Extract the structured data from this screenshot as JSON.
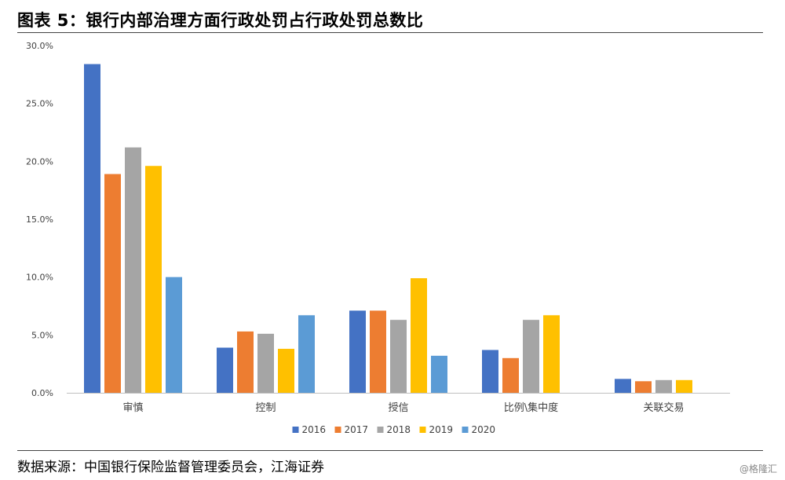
{
  "header": {
    "title": "图表 5：银行内部治理方面行政处罚占行政处罚总数比"
  },
  "footer": {
    "source": "数据来源：中国银行保险监督管理委员会，江海证券",
    "watermark": "@格隆汇"
  },
  "chart_data": {
    "type": "bar",
    "categories": [
      "审慎",
      "控制",
      "授信",
      "比例\\集中度",
      "关联交易"
    ],
    "series": [
      {
        "name": "2016",
        "color": "#4472C4",
        "values": [
          28.4,
          3.9,
          7.1,
          3.7,
          1.2
        ]
      },
      {
        "name": "2017",
        "color": "#ED7D31",
        "values": [
          18.9,
          5.3,
          7.1,
          3.0,
          1.0
        ]
      },
      {
        "name": "2018",
        "color": "#A5A5A5",
        "values": [
          21.2,
          5.1,
          6.3,
          6.3,
          1.1
        ]
      },
      {
        "name": "2019",
        "color": "#FFC000",
        "values": [
          19.6,
          3.8,
          9.9,
          6.7,
          1.1
        ]
      },
      {
        "name": "2020",
        "color": "#5B9BD5",
        "values": [
          10.0,
          6.7,
          3.2,
          null,
          null
        ]
      }
    ],
    "ylim": [
      0,
      30
    ],
    "yticks": [
      "0.0%",
      "5.0%",
      "10.0%",
      "15.0%",
      "20.0%",
      "25.0%",
      "30.0%"
    ],
    "ytick_values": [
      0,
      5,
      10,
      15,
      20,
      25,
      30
    ],
    "xlabel": "",
    "ylabel": "",
    "legend_position": "bottom",
    "grid": false
  }
}
